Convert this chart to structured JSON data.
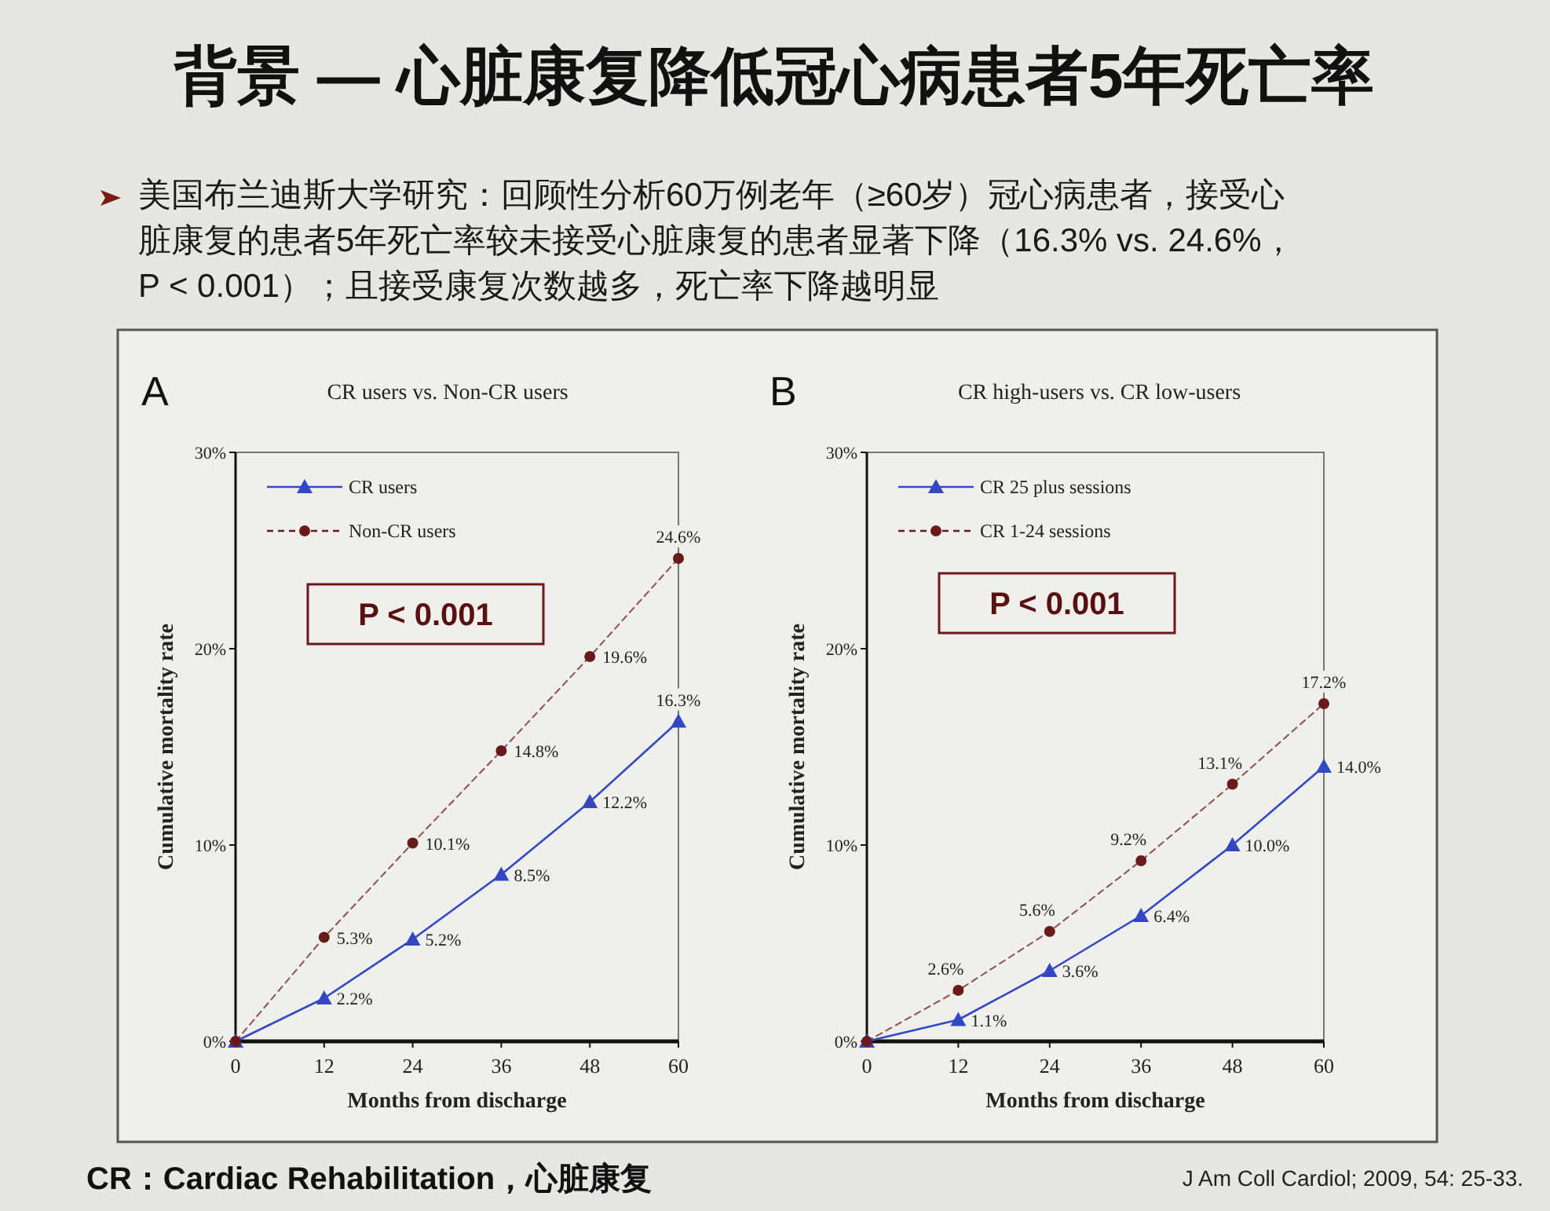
{
  "chart_data": [
    {
      "type": "line",
      "title": "CR users vs. Non-CR users",
      "xlabel": "Months from discharge",
      "ylabel": "Cumulative mortality rate",
      "annotations": [
        "背景 — 心脏康复降低冠心病患者5年死亡率",
        "美国布兰迪斯大学研究：回顾性分析60万例老年（≥60岁）冠心病患者，接受心脏康复的患者5年死亡率较未接受心脏康复的患者显著下降（16.3% vs. 24.6%，P < 0.001）；且接受康复次数越多，死亡率下降越明显",
        "A",
        "P < 0.001"
      ],
      "x": [
        0,
        12,
        24,
        36,
        48,
        60
      ],
      "xlim": [
        0,
        60
      ],
      "xticks": [
        0,
        12,
        24,
        36,
        48,
        60
      ],
      "ylim": [
        0,
        30
      ],
      "yticks": [
        {
          "value": 0,
          "label": "0%"
        },
        {
          "value": 10,
          "label": "10%"
        },
        {
          "value": 20,
          "label": "20%"
        },
        {
          "value": 30,
          "label": "30%"
        }
      ],
      "grid": false,
      "legend": "top left",
      "series": [
        {
          "name": "CR users",
          "color": "#3347c4",
          "marker": "triangle",
          "line_style": "solid",
          "values": [
            0,
            2.2,
            5.2,
            8.5,
            12.2,
            16.3
          ],
          "value_labels": [
            null,
            "2.2%",
            "5.2%",
            "8.5%",
            "12.2%",
            "16.3%"
          ]
        },
        {
          "name": "Non-CR users",
          "color": "#6a1a1a",
          "marker": "circle",
          "line_style": "dashed",
          "values": [
            0,
            5.3,
            10.1,
            14.8,
            19.6,
            24.6
          ],
          "value_labels": [
            null,
            "5.3%",
            "10.1%",
            "14.8%",
            "19.6%",
            "24.6%"
          ]
        }
      ]
    },
    {
      "type": "line",
      "title": "CR high-users vs. CR low-users",
      "xlabel": "Months from discharge",
      "ylabel": "Cumulative mortality rate",
      "annotations": [
        "B",
        "P < 0.001",
        "CR：Cardiac Rehabilitation，心脏康复",
        "J Am Coll Cardiol; 2009, 54: 25-33."
      ],
      "x": [
        0,
        12,
        24,
        36,
        48,
        60
      ],
      "xlim": [
        0,
        60
      ],
      "xticks": [
        0,
        12,
        24,
        36,
        48,
        60
      ],
      "ylim": [
        0,
        30
      ],
      "yticks": [
        {
          "value": 0,
          "label": "0%"
        },
        {
          "value": 10,
          "label": "10%"
        },
        {
          "value": 20,
          "label": "20%"
        },
        {
          "value": 30,
          "label": "30%"
        }
      ],
      "grid": false,
      "legend": "top left",
      "series": [
        {
          "name": "CR 25 plus sessions",
          "color": "#3347c4",
          "marker": "triangle",
          "line_style": "solid",
          "values": [
            0,
            1.1,
            3.6,
            6.4,
            10.0,
            14.0
          ],
          "value_labels": [
            null,
            "1.1%",
            "3.6%",
            "6.4%",
            "10.0%",
            "14.0%"
          ]
        },
        {
          "name": "CR 1-24 sessions",
          "color": "#6a1a1a",
          "marker": "circle",
          "line_style": "dashed",
          "values": [
            0,
            2.6,
            5.6,
            9.2,
            13.1,
            17.2
          ],
          "value_labels": [
            null,
            "2.6%",
            "5.6%",
            "9.2%",
            "13.1%",
            "17.2%"
          ]
        }
      ]
    }
  ]
}
